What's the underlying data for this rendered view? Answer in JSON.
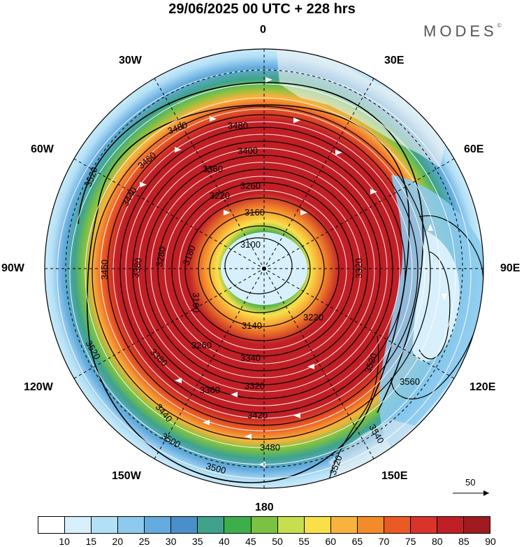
{
  "header": {
    "title": "29/06/2025  00 UTC  + 228 hrs",
    "brand": "MODES"
  },
  "longitude_labels": {
    "n0": "0",
    "n30e": "30E",
    "n60e": "60E",
    "n90e": "90E",
    "n120e": "120E",
    "n150e": "150E",
    "n180": "180",
    "n150w": "150W",
    "n120w": "120W",
    "n90w": "90W",
    "n60w": "60W",
    "n30w": "30W"
  },
  "contour_labels": {
    "c3100": "3100",
    "c3140": "3140",
    "c3160a": "3160",
    "c3160b": "3160",
    "c3180": "3180",
    "c3220a": "3220",
    "c3220b": "3220",
    "c3260a": "3260",
    "c3260b": "3260",
    "c3280": "3280",
    "c3320a": "3320",
    "c3320b": "3320",
    "c3340": "3340",
    "c3360a": "3360",
    "c3360b": "3360",
    "c3380a": "3380",
    "c3380b": "3380",
    "c3400": "3400",
    "c3420": "3420",
    "c3440a": "3440",
    "c3440b": "3440",
    "c3460a": "3460",
    "c3460b": "3460",
    "c3480a": "3480",
    "c3480b": "3480",
    "c3480c": "3480",
    "c3500a": "3500",
    "c3500b": "3500",
    "c3520a": "3520",
    "c3520b": "3520",
    "c3520c": "3520",
    "c3520d": "3520",
    "c3540": "3540",
    "c3560": "3560"
  },
  "wind_scale": {
    "label": "50"
  },
  "colorbar": {
    "colors": [
      "#ffffff",
      "#d8f0fb",
      "#b4e0f6",
      "#8ccbee",
      "#64abdf",
      "#4a8fcc",
      "#3fa38c",
      "#3daf4a",
      "#7cc242",
      "#c7de4f",
      "#f9e04a",
      "#f9b23b",
      "#f48b2b",
      "#ea5a24",
      "#d9332a",
      "#c01f26",
      "#a11a20"
    ],
    "ticks": [
      "10",
      "15",
      "20",
      "25",
      "30",
      "35",
      "40",
      "45",
      "50",
      "55",
      "60",
      "65",
      "70",
      "75",
      "80",
      "85",
      "90"
    ]
  }
}
